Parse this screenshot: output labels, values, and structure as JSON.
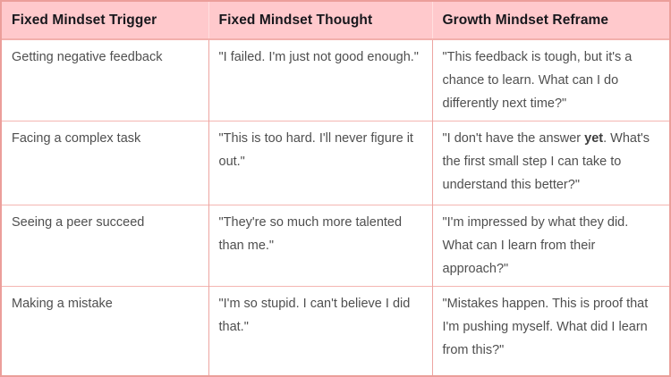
{
  "colors": {
    "header-bg": "#ffc9cc",
    "header-text": "#17171c",
    "body-text": "#4f4f4f",
    "outer-border": "#eb9e9a",
    "column-border": "#eda5a1",
    "row-border": "#f4b6b2",
    "header-divider": "#ffdfdf",
    "header-bottom-border": "#f2b0ad"
  },
  "table": {
    "columns": [
      {
        "key": "trigger",
        "label": "Fixed Mindset Trigger"
      },
      {
        "key": "thought",
        "label": "Fixed Mindset Thought"
      },
      {
        "key": "reframe",
        "label": "Growth Mindset Reframe"
      }
    ],
    "rows": [
      {
        "trigger": "Getting negative feedback",
        "thought": "\"I failed. I'm just not good enough.\"",
        "reframe": [
          {
            "text": "\"This feedback is tough, but it's a chance to learn. What can I do differently next time?\"",
            "bold": false
          }
        ]
      },
      {
        "trigger": "Facing a complex task",
        "thought": "\"This is too hard. I'll never figure it out.\"",
        "reframe": [
          {
            "text": "\"I don't have the answer ",
            "bold": false
          },
          {
            "text": "yet",
            "bold": true
          },
          {
            "text": ". What's the first small step I can take to understand this better?\"",
            "bold": false
          }
        ]
      },
      {
        "trigger": "Seeing a peer succeed",
        "thought": "\"They're so much more talented than me.\"",
        "reframe": [
          {
            "text": "\"I'm impressed by what they did. What can I learn from their approach?\"",
            "bold": false
          }
        ]
      },
      {
        "trigger": "Making a mistake",
        "thought": "\"I'm so stupid. I can't believe I did that.\"",
        "reframe": [
          {
            "text": "\"Mistakes happen. This is proof that I'm pushing myself. What did I learn from this?\"",
            "bold": false
          }
        ]
      }
    ]
  }
}
